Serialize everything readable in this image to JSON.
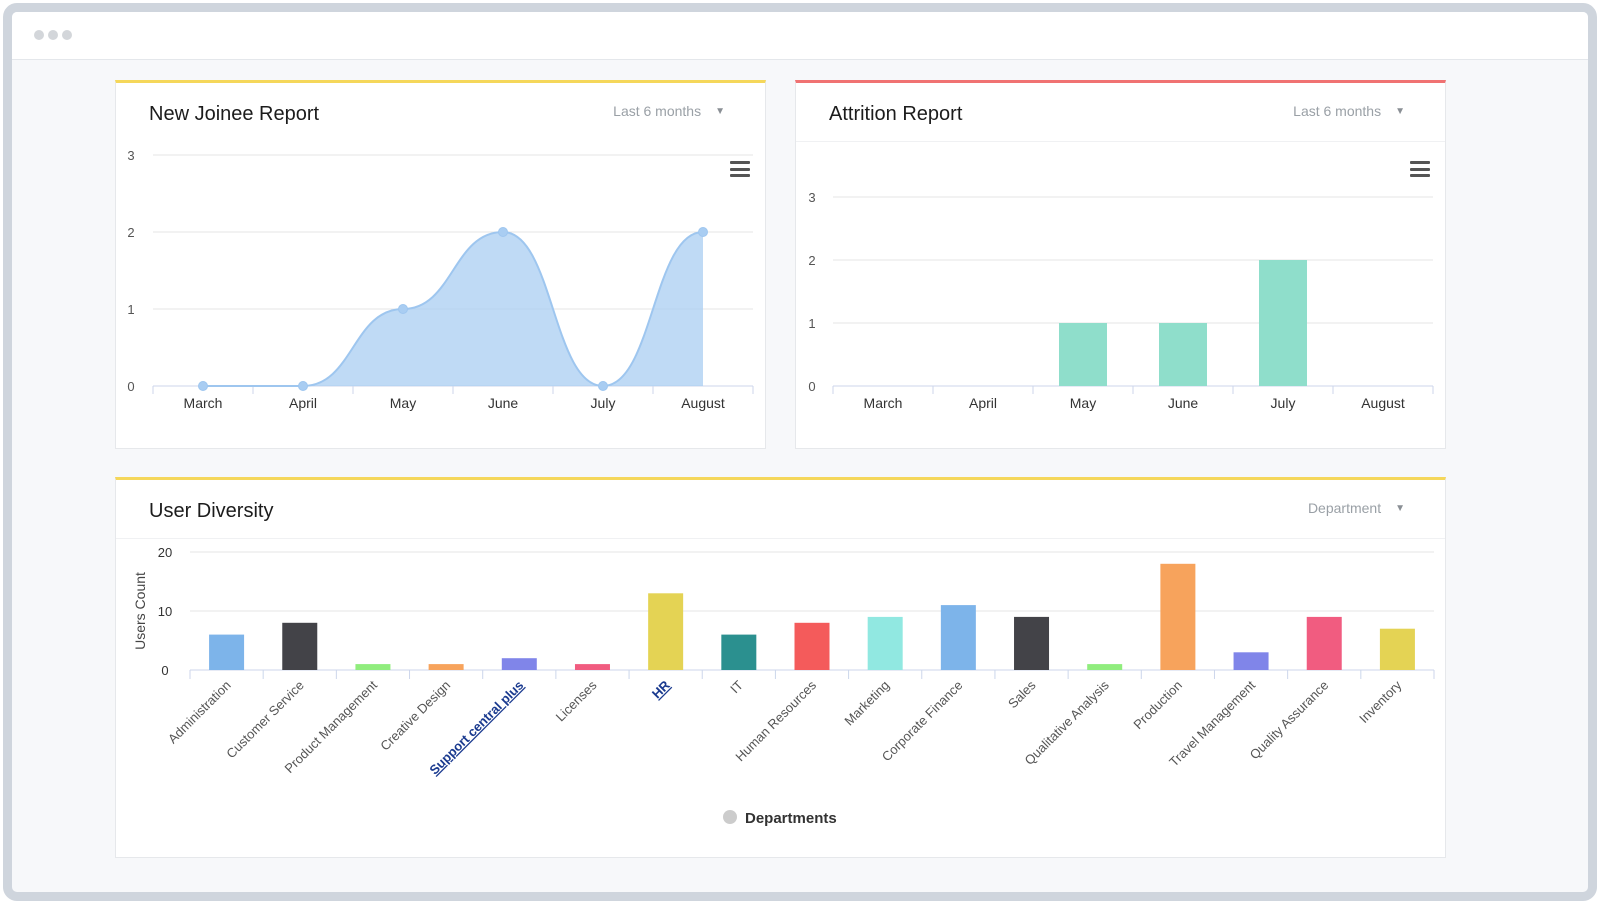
{
  "dashboard": {
    "new_joinee": {
      "title": "New Joinee Report",
      "filter": "Last 6 months",
      "menu_icon": "hamburger-menu-icon",
      "accent": "#f5d75a"
    },
    "attrition": {
      "title": "Attrition Report",
      "filter": "Last 6 months",
      "menu_icon": "hamburger-menu-icon",
      "accent": "#f07272"
    },
    "diversity": {
      "title": "User Diversity",
      "filter": "Department",
      "accent": "#f5d75a"
    }
  },
  "chart_data": [
    {
      "type": "area",
      "categories": [
        "March",
        "April",
        "May",
        "June",
        "July",
        "August"
      ],
      "values": [
        0,
        0,
        1,
        2,
        0,
        2
      ],
      "yticks": [
        0,
        1,
        2,
        3
      ],
      "ylim": [
        0,
        3
      ],
      "color": "#a9cdf2",
      "grid": true
    },
    {
      "type": "bar",
      "categories": [
        "March",
        "April",
        "May",
        "June",
        "July",
        "August"
      ],
      "values": [
        0,
        0,
        1,
        1,
        2,
        0
      ],
      "yticks": [
        0,
        1,
        2,
        3
      ],
      "ylim": [
        0,
        3
      ],
      "color": "#8fdecb",
      "grid": true
    },
    {
      "type": "bar",
      "categories": [
        "Administration",
        "Customer Service",
        "Product Management",
        "Creative Design",
        "Support central plus",
        "Licenses",
        "HR",
        "IT",
        "Human Resources",
        "Marketing",
        "Corporate Finance",
        "Sales",
        "Qualitative Analysis",
        "Production",
        "Travel Management",
        "Quality Assurance",
        "Inventory"
      ],
      "values": [
        6,
        8,
        1,
        1,
        2,
        1,
        13,
        6,
        8,
        9,
        11,
        9,
        1,
        18,
        3,
        9,
        7
      ],
      "colors": [
        "#7db4ea",
        "#434348",
        "#90ed7d",
        "#f7a35c",
        "#8085e9",
        "#f15c80",
        "#e4d354",
        "#2b908f",
        "#f45b5b",
        "#91e8e1",
        "#7db4ea",
        "#434348",
        "#90ed7d",
        "#f7a35c",
        "#8085e9",
        "#f15c80",
        "#e4d354"
      ],
      "link_categories": [
        "Support central plus",
        "HR"
      ],
      "yticks": [
        0,
        10,
        20
      ],
      "ylim": [
        0,
        20
      ],
      "ylabel": "Users Count",
      "legend": "Departments",
      "legend_color": "#cccccc",
      "grid": true
    }
  ]
}
